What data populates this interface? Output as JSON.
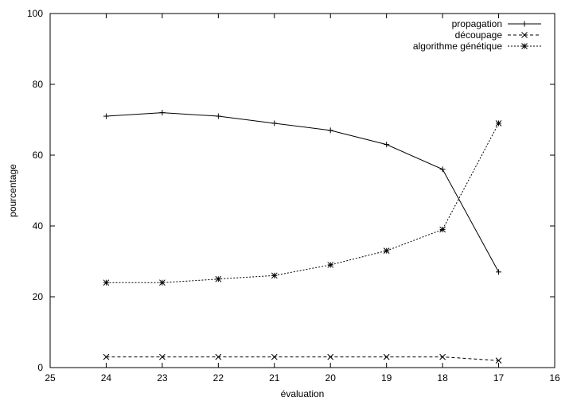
{
  "chart_data": {
    "type": "line",
    "title": "",
    "xlabel": "évaluation",
    "ylabel": "pourcentage",
    "xlim": [
      25,
      16
    ],
    "ylim": [
      0,
      100
    ],
    "x_reversed": true,
    "xticks": [
      25,
      24,
      23,
      22,
      21,
      20,
      19,
      18,
      17,
      16
    ],
    "yticks": [
      0,
      20,
      40,
      60,
      80,
      100
    ],
    "grid": false,
    "legend_position": "top-right",
    "x": [
      24,
      23,
      22,
      21,
      20,
      19,
      18,
      17
    ],
    "series": [
      {
        "name": "propagation",
        "values": [
          71,
          72,
          71,
          69,
          67,
          63,
          56,
          27
        ],
        "line_style": "solid",
        "marker": "plus"
      },
      {
        "name": "découpage",
        "values": [
          3,
          3,
          3,
          3,
          3,
          3,
          3,
          2
        ],
        "line_style": "dashed",
        "marker": "cross"
      },
      {
        "name": "algorithme génétique",
        "values": [
          24,
          24,
          25,
          26,
          29,
          33,
          39,
          69
        ],
        "line_style": "dotted",
        "marker": "star"
      }
    ]
  }
}
